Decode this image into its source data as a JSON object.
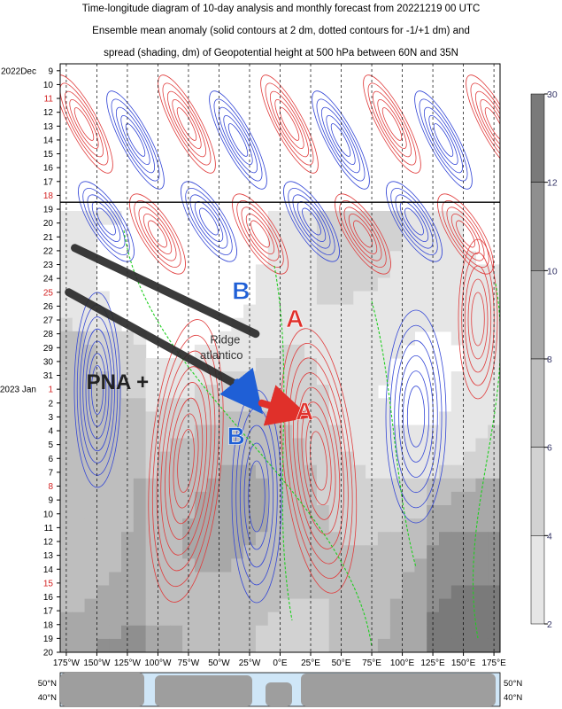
{
  "chart_data": {
    "type": "heatmap",
    "title_lines": [
      "Time-longitude diagram of 10-day analysis and monthly forecast from 20221219 00 UTC",
      "Ensemble mean anomaly (solid contours at 2 dm, dotted contours for -1/+1 dm) and",
      "spread (shading, dm) of Geopotential height at 500 hPa between 60N and 35N"
    ],
    "x_ticks": [
      "175°W",
      "150°W",
      "125°W",
      "100°W",
      "75°W",
      "50°W",
      "25°W",
      "0°E",
      "25°E",
      "50°E",
      "75°E",
      "100°E",
      "125°E",
      "150°E",
      "175°E"
    ],
    "x_values": [
      -175,
      -150,
      -125,
      -100,
      -75,
      -50,
      -25,
      0,
      25,
      50,
      75,
      100,
      125,
      150,
      175
    ],
    "xlim": [
      -180,
      180
    ],
    "year_labels": [
      {
        "text": "2022Dec",
        "row": 0
      },
      {
        "text": "2023 Jan",
        "row": 23
      }
    ],
    "day_labels": [
      "9",
      "10",
      "11",
      "12",
      "13",
      "14",
      "15",
      "16",
      "17",
      "18",
      "19",
      "20",
      "21",
      "22",
      "23",
      "24",
      "25",
      "26",
      "27",
      "28",
      "29",
      "30",
      "31",
      "1",
      "2",
      "3",
      "4",
      "5",
      "6",
      "7",
      "8",
      "9",
      "10",
      "11",
      "12",
      "13",
      "14",
      "15",
      "16",
      "17",
      "18",
      "19",
      "20"
    ],
    "red_day_rows": [
      2,
      9,
      16,
      23,
      30,
      37
    ],
    "analysis_forecast_boundary_row": 10,
    "colorbar": {
      "ticks": [
        "30",
        "12",
        "10",
        "8",
        "6",
        "4",
        "2"
      ],
      "levels": [
        30,
        12,
        10,
        8,
        6,
        4,
        2
      ],
      "colors": [
        "#7a7a7a",
        "#8f8f8f",
        "#a8a8a8",
        "#bebebe",
        "#d2d2d2",
        "#e6e6e6"
      ]
    },
    "map_lat_labels": [
      "50°N",
      "40°N"
    ],
    "annotations": [
      {
        "text": "B",
        "lon": -32,
        "day_row": 16.5,
        "color": "#1f5fd6"
      },
      {
        "text": "A",
        "lon": 12,
        "day_row": 18.5,
        "color": "#e0302a"
      },
      {
        "text": "Ridge",
        "lon": -45,
        "day_row": 19.7,
        "color": "#333333"
      },
      {
        "text": "atlantico",
        "lon": -48,
        "day_row": 20.8,
        "color": "#333333"
      },
      {
        "text": "PNA +",
        "lon": -133,
        "day_row": 23.0,
        "color": "#222222"
      },
      {
        "text": "B",
        "lon": -36,
        "day_row": 27.0,
        "color": "#1f5fd6"
      },
      {
        "text": "A",
        "lon": 20,
        "day_row": 25.2,
        "color": "#e0302a"
      }
    ],
    "trend_lines": [
      {
        "color": "#2b2b2b",
        "from": [
          -168,
          12.8
        ],
        "to": [
          -20,
          19.0
        ]
      },
      {
        "color": "#2b2b2b",
        "from": [
          -173,
          16.0
        ],
        "to": [
          -33,
          22.8
        ]
      }
    ],
    "arrows": [
      {
        "color": "#1f5fd6",
        "from": [
          -35,
          22.5
        ],
        "to": [
          -25,
          23.6
        ]
      },
      {
        "color": "#e0302a",
        "from": [
          -15,
          24.0
        ],
        "to": [
          8,
          24.6
        ]
      }
    ]
  }
}
